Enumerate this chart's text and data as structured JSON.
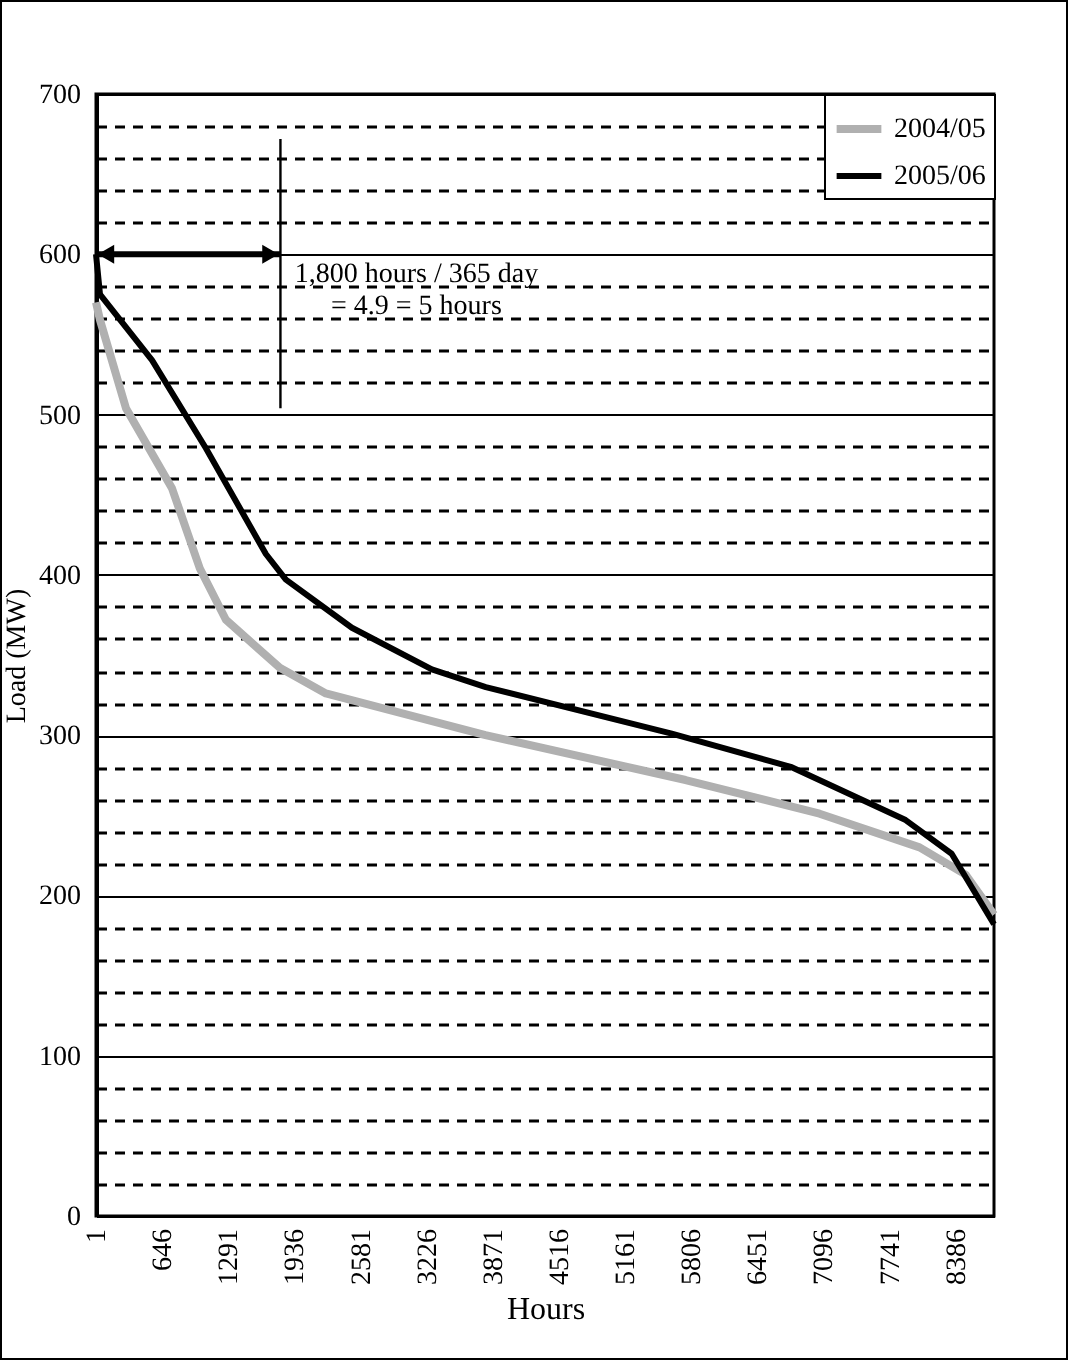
{
  "chart_data": {
    "type": "line",
    "xlabel": "Hours",
    "ylabel": "Load (MW)",
    "xlim": [
      1,
      8760
    ],
    "xticks": [
      1,
      646,
      1291,
      1936,
      2581,
      3226,
      3871,
      4516,
      5161,
      5806,
      6451,
      7096,
      7741,
      8386
    ],
    "ylim": [
      0,
      700
    ],
    "yticks": [
      0,
      {
        "value": 20,
        "label": null
      },
      {
        "value": 40,
        "label": null
      },
      {
        "value": 60,
        "label": null
      },
      {
        "value": 80,
        "label": null
      },
      100,
      {
        "value": 120,
        "label": null
      },
      {
        "value": 140,
        "label": null
      },
      {
        "value": 160,
        "label": null
      },
      {
        "value": 180,
        "label": null
      },
      200,
      {
        "value": 220,
        "label": null
      },
      {
        "value": 240,
        "label": null
      },
      {
        "value": 260,
        "label": null
      },
      {
        "value": 280,
        "label": null
      },
      300,
      {
        "value": 320,
        "label": null
      },
      {
        "value": 340,
        "label": null
      },
      {
        "value": 360,
        "label": null
      },
      {
        "value": 380,
        "label": null
      },
      400,
      {
        "value": 420,
        "label": null
      },
      {
        "value": 440,
        "label": null
      },
      {
        "value": 460,
        "label": null
      },
      {
        "value": 480,
        "label": null
      },
      500,
      {
        "value": 520,
        "label": null
      },
      {
        "value": 540,
        "label": null
      },
      {
        "value": 560,
        "label": null
      },
      {
        "value": 580,
        "label": null
      },
      600,
      {
        "value": 620,
        "label": null
      },
      {
        "value": 640,
        "label": null
      },
      {
        "value": 660,
        "label": null
      },
      {
        "value": 680,
        "label": null
      },
      700
    ],
    "grid": "y",
    "legend": "top right",
    "marker": "none",
    "line_style": "solid",
    "series": [
      {
        "name": "2004/05",
        "color": "#b0b0b0",
        "x": [
          1,
          40,
          293,
          742,
          1014,
          1268,
          1794,
          2243,
          3800,
          5752,
          7059,
          8034,
          8483,
          8760
        ],
        "values": [
          570,
          559,
          504,
          454,
          404,
          372,
          342,
          326,
          300,
          272,
          251,
          230,
          213,
          188
        ]
      },
      {
        "name": "2005/06",
        "color": "#000000",
        "x": [
          1,
          40,
          547,
          1073,
          1658,
          1853,
          2497,
          3277,
          3803,
          5617,
          6787,
          7898,
          8347,
          8760
        ],
        "values": [
          600,
          575,
          534,
          479,
          413,
          397,
          367,
          341,
          330,
          301,
          280,
          247,
          226,
          182
        ]
      }
    ],
    "ref_lines": [
      {
        "axis": "x",
        "value": 1800
      }
    ],
    "annotations": [
      {
        "text": "1,800 hours / 365 day\n= 4.9 = 5 hours",
        "x": 1800,
        "y": 600
      }
    ]
  }
}
